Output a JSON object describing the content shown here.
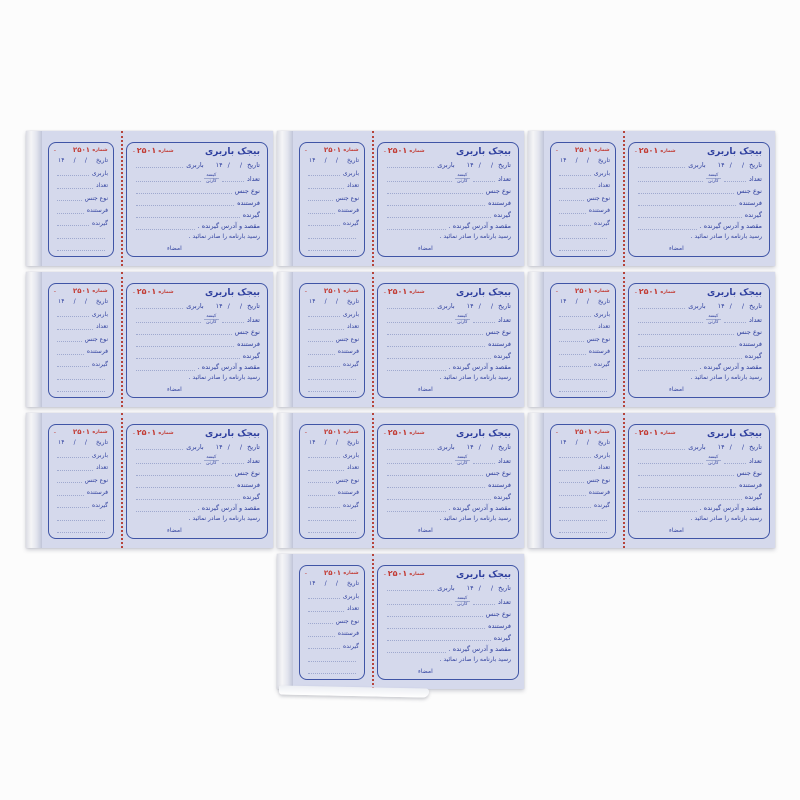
{
  "page": {
    "background": "#fcfcfc"
  },
  "pad": {
    "count": 10,
    "colors": {
      "paper": "#d5d9ec",
      "border": "#4055a6",
      "text": "#2e3f9e",
      "red": "#c23a32",
      "line": "#9fa9cf",
      "perforation": "#b5443c"
    },
    "main_form": {
      "title": "بیجک باربری",
      "serial_stamp": "شماره",
      "serial_number": "۲۵۰۱",
      "dash": "ـ",
      "date_label": "تاریخ",
      "slash": "/",
      "date_year": "۱۴",
      "carrier_label": "باربری",
      "quantity_label": "تعداد",
      "unit_option_top": "کیسه",
      "unit_option_bottom": "کارتن",
      "goods_type_label": "نوع جنس",
      "sender_label": "فرستنده",
      "receiver_label": "گیرنده",
      "destination_label": "مقصد و آدرس گیرنده .",
      "instruction": "رسید بارنامه را صادر نمائید .",
      "signature_label": "امضاء"
    },
    "stub": {
      "serial_stamp": "شماره",
      "serial_number": "۲۵۰۱",
      "dash": "ـ",
      "date_label": "تاریخ",
      "slash": "/",
      "date_year": "۱۴",
      "field_labels": [
        "باربری",
        "تعداد",
        "نوع جنس",
        "فرستنده",
        "گیرنده"
      ]
    }
  }
}
